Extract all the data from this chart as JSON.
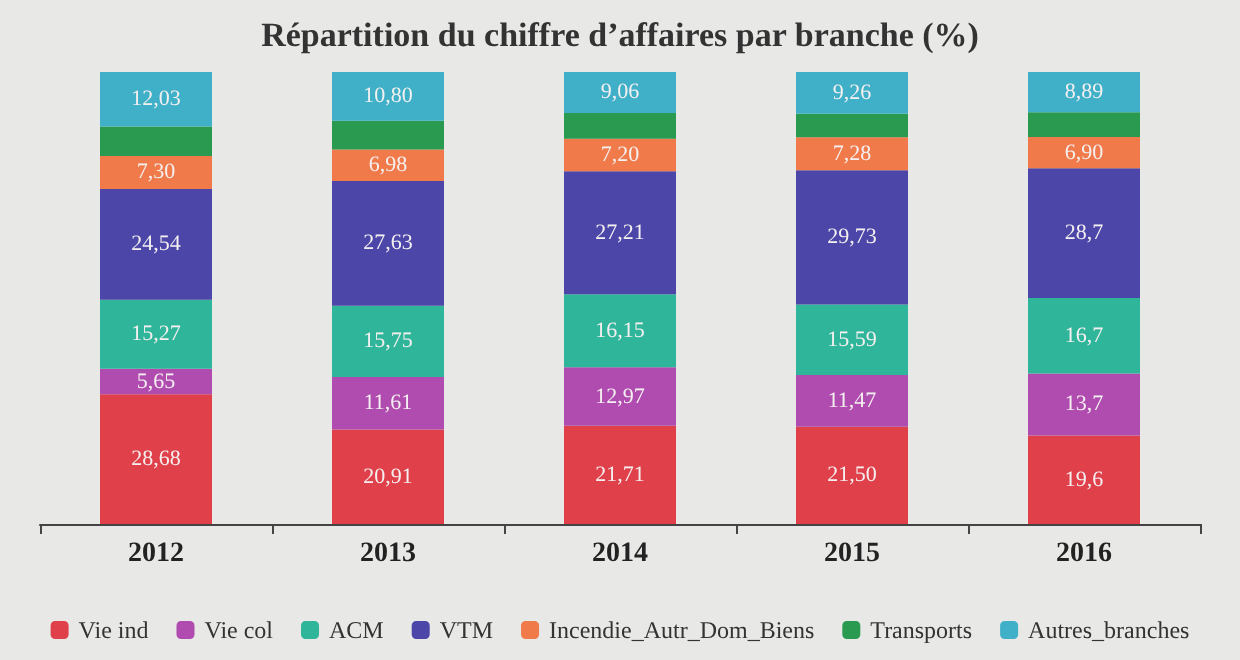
{
  "chart_data": {
    "type": "bar",
    "title": "Répartition du chiffre d’affaires par branche (%)",
    "stacked": true,
    "legend": "bottom",
    "categories": [
      "2012",
      "2013",
      "2014",
      "2015",
      "2016"
    ],
    "series": [
      {
        "name": "Vie ind",
        "color": "#e0404a",
        "values": [
          28.68,
          20.91,
          21.71,
          21.5,
          19.6
        ],
        "value_labels": [
          "28,68",
          "20,91",
          "21,71",
          "21,50",
          "19,6"
        ]
      },
      {
        "name": "Vie col",
        "color": "#b04cb0",
        "values": [
          5.65,
          11.61,
          12.97,
          11.47,
          13.7
        ],
        "value_labels": [
          "5,65",
          "11,61",
          "12,97",
          "11,47",
          "13,7"
        ]
      },
      {
        "name": "ACM",
        "color": "#2fb59a",
        "values": [
          15.27,
          15.75,
          16.15,
          15.59,
          16.7
        ],
        "value_labels": [
          "15,27",
          "15,75",
          "16,15",
          "15,59",
          "16,7"
        ]
      },
      {
        "name": "VTM",
        "color": "#4b46a8",
        "values": [
          24.54,
          27.63,
          27.21,
          29.73,
          28.7
        ],
        "value_labels": [
          "24,54",
          "27,63",
          "27,21",
          "29,73",
          "28,7"
        ]
      },
      {
        "name": "Incendie_Autr_Dom_Biens",
        "color": "#f07a4a",
        "values": [
          7.3,
          6.98,
          7.2,
          7.28,
          6.9
        ],
        "value_labels": [
          "7,30",
          "6,98",
          "7,20",
          "7,28",
          "6,90"
        ]
      },
      {
        "name": "Transports",
        "color": "#2a9a50",
        "values": [
          6.53,
          6.32,
          5.7,
          5.17,
          5.51
        ],
        "value_labels": [
          null,
          null,
          null,
          null,
          null
        ]
      },
      {
        "name": "Autres_branches",
        "color": "#3fb0c8",
        "values": [
          12.03,
          10.8,
          9.06,
          9.26,
          8.89
        ],
        "value_labels": [
          "12,03",
          "10,80",
          "9,06",
          "9,26",
          "8,89"
        ]
      }
    ]
  }
}
